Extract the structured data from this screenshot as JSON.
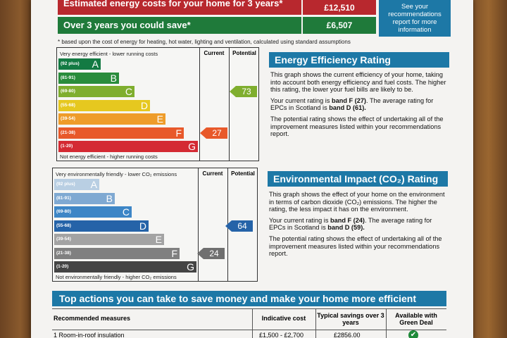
{
  "summary": {
    "row1": {
      "label": "Estimated energy costs for your home for 3 years*",
      "value": "£12,510"
    },
    "row2": {
      "label": "Over 3 years you could save*",
      "value": "£6,507"
    },
    "see_more": "See your recommendations report for more information",
    "footnote": "* based upon the cost of energy for heating, hot water, lighting and ventilation, calculated using standard assumptions"
  },
  "energy_chart": {
    "top_label": "Very energy efficient - lower running costs",
    "bottom_label": "Not energy efficient - higher running costs",
    "col_current": "Current",
    "col_potential": "Potential",
    "bands": [
      {
        "range": "(92 plus)",
        "letter": "A",
        "color": "#137a43"
      },
      {
        "range": "(81-91)",
        "letter": "B",
        "color": "#2a8c3c"
      },
      {
        "range": "(69-80)",
        "letter": "C",
        "color": "#7fae2e"
      },
      {
        "range": "(55-68)",
        "letter": "D",
        "color": "#e6c81f"
      },
      {
        "range": "(39-54)",
        "letter": "E",
        "color": "#ee9c2a"
      },
      {
        "range": "(21-38)",
        "letter": "F",
        "color": "#e8592a"
      },
      {
        "range": "(1-20)",
        "letter": "G",
        "color": "#d42a33"
      }
    ],
    "current": {
      "value": "27",
      "band_index": 5,
      "color": "#e8592a"
    },
    "potential": {
      "value": "73",
      "band_index": 2,
      "color": "#7fae2e"
    }
  },
  "energy_panel": {
    "title": "Energy Efficiency Rating",
    "p1": "This graph shows the current efficiency of your home, taking into account both energy efficiency and fuel costs. The higher this rating, the lower your fuel bills are likely to be.",
    "p2a": "Your current rating is ",
    "p2b": "band F (27)",
    "p2c": ". The average rating for EPCs in Scotland is ",
    "p2d": "band D (61).",
    "p3": "The potential rating shows the effect of undertaking all of the improvement measures listed within your recommendations report."
  },
  "env_chart": {
    "top_label": "Very environmentally friendly - lower CO₂ emissions",
    "bottom_label": "Not environmentally friendly - higher CO₂ emissions",
    "col_current": "Current",
    "col_potential": "Potential",
    "bands": [
      {
        "range": "(92 plus)",
        "letter": "A",
        "color": "#b9cfe3"
      },
      {
        "range": "(81-91)",
        "letter": "B",
        "color": "#7fa9d2"
      },
      {
        "range": "(69-80)",
        "letter": "C",
        "color": "#3d86c6"
      },
      {
        "range": "(55-68)",
        "letter": "D",
        "color": "#2563a8"
      },
      {
        "range": "(39-54)",
        "letter": "E",
        "color": "#a3a3a3"
      },
      {
        "range": "(21-38)",
        "letter": "F",
        "color": "#808080"
      },
      {
        "range": "(1-20)",
        "letter": "G",
        "color": "#444444"
      }
    ],
    "current": {
      "value": "24",
      "band_index": 5,
      "color": "#6f6f6f"
    },
    "potential": {
      "value": "64",
      "band_index": 3,
      "color": "#2563a8"
    }
  },
  "env_panel": {
    "title": "Environmental Impact (CO₂) Rating",
    "p1": "This graph shows the effect of your home on the environment in terms of carbon dioxide (CO₂) emissions. The higher the rating, the less impact it has on the environment.",
    "p2a": "Your current rating is ",
    "p2b": "band F (24)",
    "p2c": ". The average rating for EPCs in Scotland is ",
    "p2d": "band D (59).",
    "p3": "The potential rating shows the effect of undertaking all of the improvement measures listed within your recommendations report."
  },
  "actions": {
    "title": "Top actions you can take to save money and make your home more efficient",
    "headers": [
      "Recommended measures",
      "Indicative cost",
      "Typical savings over 3 years",
      "Available with Green Deal"
    ],
    "row1": {
      "measure": "1 Room-in-roof insulation",
      "cost": "£1,500 - £2,700",
      "savings": "£2856.00",
      "available": "✔"
    }
  }
}
